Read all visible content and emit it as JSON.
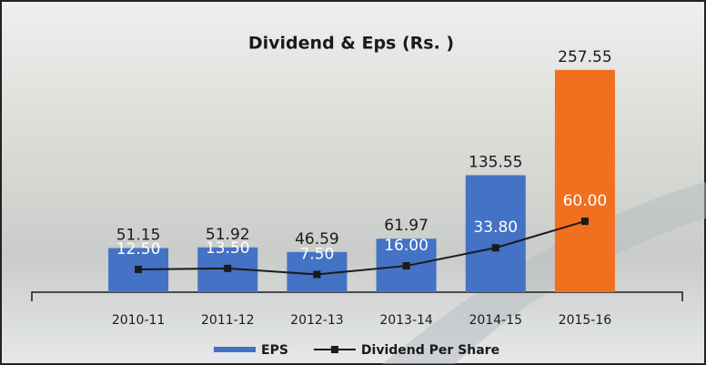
{
  "chart_data": {
    "type": "bar-line",
    "title": "Dividend & Eps (Rs. )",
    "categories": [
      "2010-11",
      "2011-12",
      "2012-13",
      "2013-14",
      "2014-15",
      "2015-16"
    ],
    "series": [
      {
        "name": "EPS",
        "type": "bar",
        "color": "#4472c4",
        "colors": [
          "#4472c4",
          "#4472c4",
          "#4472c4",
          "#4472c4",
          "#4472c4",
          "#f07020"
        ],
        "values": [
          51.15,
          51.92,
          46.59,
          61.97,
          135.55,
          257.55
        ]
      },
      {
        "name": "Dividend Per Share",
        "type": "line",
        "axis": "y2",
        "color": "#1a1a1a",
        "values": [
          12.5,
          13.5,
          7.5,
          16,
          33.8,
          60
        ],
        "value_labels": [
          "12.50",
          "13.50",
          "7.50",
          "16.00",
          "33.80",
          "60.00"
        ]
      }
    ],
    "ylim": [
      0,
      270
    ],
    "y2lim": [
      -10,
      220
    ],
    "legend": "bottom"
  }
}
